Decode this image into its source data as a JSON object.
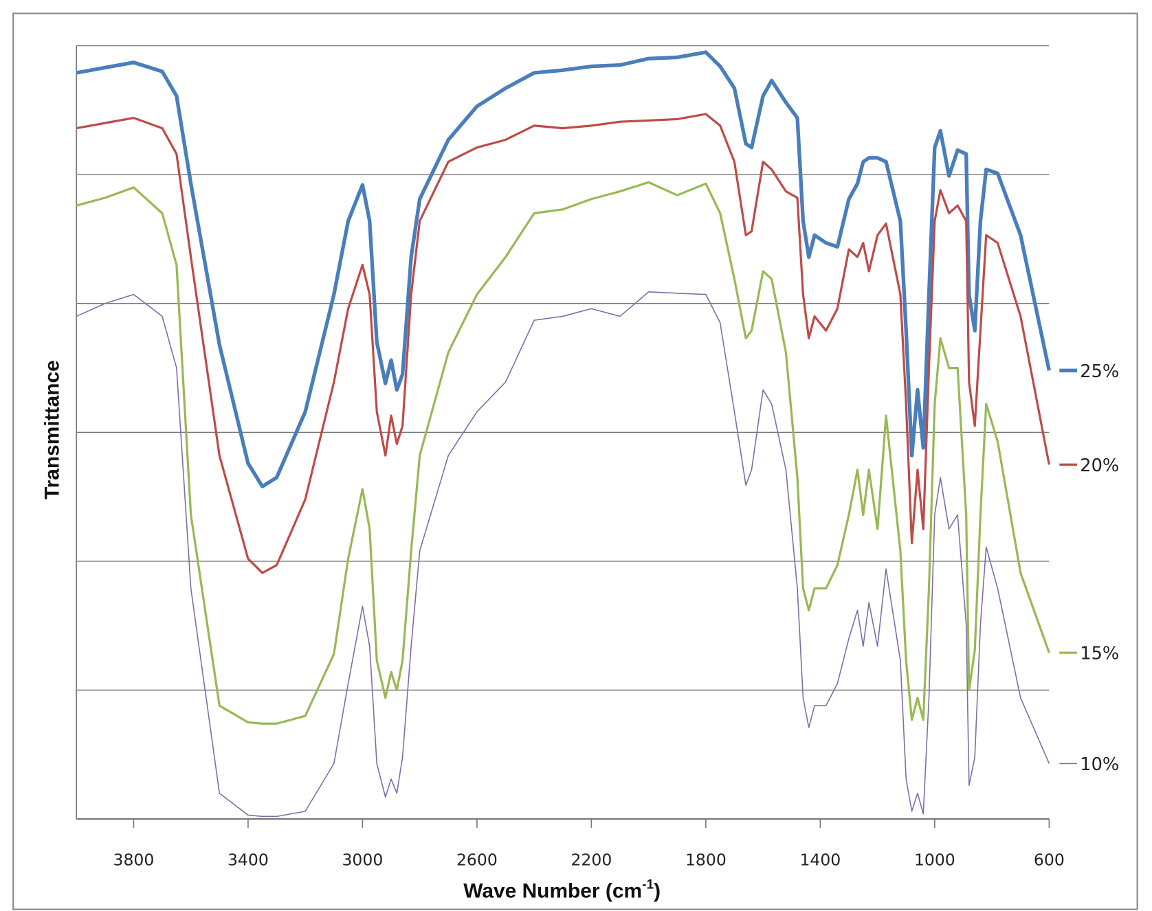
{
  "chart_data": {
    "type": "line",
    "title": "",
    "xlabel": "Wave Number (cm-1)",
    "xlabel_parts": {
      "main": "Wave Number (cm",
      "sup": "-1",
      "end": ")"
    },
    "ylabel": "Transmittance",
    "xlim": [
      4000,
      600
    ],
    "ylim": [
      0,
      6
    ],
    "x_reversed": true,
    "grid": "horizontal",
    "legend_placement": "right (labels at line ends)",
    "xticks": [
      "3800",
      "3400",
      "3000",
      "2600",
      "2200",
      "1800",
      "1400",
      "1000",
      "600"
    ],
    "xtick_values": [
      3800,
      3400,
      3000,
      2600,
      2200,
      1800,
      1400,
      1000,
      600
    ],
    "x": [
      4000,
      3900,
      3800,
      3700,
      3650,
      3600,
      3500,
      3400,
      3350,
      3300,
      3200,
      3100,
      3050,
      3000,
      2975,
      2950,
      2920,
      2900,
      2880,
      2860,
      2830,
      2800,
      2700,
      2600,
      2500,
      2400,
      2300,
      2200,
      2100,
      2000,
      1900,
      1800,
      1750,
      1700,
      1660,
      1640,
      1600,
      1570,
      1520,
      1480,
      1460,
      1440,
      1420,
      1380,
      1340,
      1300,
      1270,
      1250,
      1230,
      1200,
      1170,
      1120,
      1100,
      1080,
      1060,
      1040,
      1020,
      1000,
      980,
      950,
      920,
      890,
      880,
      860,
      840,
      820,
      780,
      700,
      600
    ],
    "series": [
      {
        "name": "25%",
        "color": "#4a7ebb",
        "width": 5,
        "values": [
          5.79,
          5.83,
          5.87,
          5.8,
          5.61,
          4.93,
          3.68,
          2.76,
          2.58,
          2.65,
          3.16,
          4.07,
          4.64,
          4.92,
          4.64,
          3.7,
          3.38,
          3.56,
          3.33,
          3.45,
          4.36,
          4.81,
          5.27,
          5.53,
          5.67,
          5.79,
          5.81,
          5.84,
          5.85,
          5.9,
          5.91,
          5.95,
          5.84,
          5.67,
          5.24,
          5.21,
          5.61,
          5.73,
          5.56,
          5.44,
          4.64,
          4.36,
          4.53,
          4.47,
          4.44,
          4.81,
          4.93,
          5.1,
          5.13,
          5.13,
          5.1,
          4.64,
          3.79,
          2.82,
          3.33,
          2.88,
          4.07,
          5.21,
          5.34,
          4.99,
          5.19,
          5.16,
          4.07,
          3.79,
          4.64,
          5.04,
          5.01,
          4.53,
          3.48
        ]
      },
      {
        "name": "20%",
        "color": "#be4b48",
        "width": 3,
        "values": [
          5.36,
          5.4,
          5.44,
          5.36,
          5.16,
          4.36,
          2.82,
          2.02,
          1.91,
          1.97,
          2.48,
          3.39,
          3.96,
          4.3,
          4.07,
          3.16,
          2.82,
          3.13,
          2.91,
          3.05,
          4.07,
          4.64,
          5.1,
          5.21,
          5.27,
          5.38,
          5.36,
          5.38,
          5.41,
          5.42,
          5.43,
          5.47,
          5.38,
          5.1,
          4.53,
          4.56,
          5.1,
          5.04,
          4.87,
          4.82,
          4.07,
          3.73,
          3.9,
          3.79,
          3.96,
          4.42,
          4.36,
          4.47,
          4.25,
          4.53,
          4.62,
          4.07,
          3.22,
          2.14,
          2.71,
          2.25,
          3.5,
          4.64,
          4.88,
          4.7,
          4.76,
          4.64,
          3.39,
          3.05,
          3.79,
          4.53,
          4.47,
          3.9,
          2.75
        ]
      },
      {
        "name": "15%",
        "color": "#98b954",
        "width": 3,
        "values": [
          4.76,
          4.82,
          4.9,
          4.7,
          4.3,
          2.36,
          0.88,
          0.75,
          0.74,
          0.74,
          0.8,
          1.28,
          2.02,
          2.56,
          2.25,
          1.23,
          0.94,
          1.14,
          1.0,
          1.23,
          2.08,
          2.82,
          3.62,
          4.07,
          4.36,
          4.7,
          4.73,
          4.81,
          4.87,
          4.94,
          4.84,
          4.93,
          4.7,
          4.19,
          3.73,
          3.79,
          4.25,
          4.19,
          3.62,
          2.65,
          1.79,
          1.62,
          1.79,
          1.79,
          1.97,
          2.36,
          2.71,
          2.36,
          2.71,
          2.25,
          3.13,
          2.08,
          1.23,
          0.77,
          0.94,
          0.77,
          1.79,
          3.22,
          3.73,
          3.5,
          3.5,
          2.36,
          1.0,
          1.31,
          2.36,
          3.22,
          2.93,
          1.91,
          1.29
        ]
      },
      {
        "name": "10%",
        "color": "#7d6fa8",
        "width": 1.5,
        "values": [
          3.9,
          4.0,
          4.07,
          3.9,
          3.5,
          1.79,
          0.2,
          0.03,
          0.02,
          0.02,
          0.06,
          0.43,
          1.05,
          1.65,
          1.34,
          0.43,
          0.17,
          0.31,
          0.2,
          0.48,
          1.34,
          2.08,
          2.82,
          3.16,
          3.39,
          3.87,
          3.9,
          3.96,
          3.9,
          4.09,
          4.08,
          4.07,
          3.85,
          3.16,
          2.59,
          2.71,
          3.33,
          3.22,
          2.71,
          1.79,
          0.94,
          0.71,
          0.88,
          0.88,
          1.05,
          1.4,
          1.62,
          1.34,
          1.68,
          1.34,
          1.94,
          1.23,
          0.31,
          0.06,
          0.2,
          0.04,
          0.94,
          2.36,
          2.65,
          2.25,
          2.36,
          1.51,
          0.26,
          0.48,
          1.51,
          2.11,
          1.79,
          0.94,
          0.43
        ]
      }
    ]
  }
}
